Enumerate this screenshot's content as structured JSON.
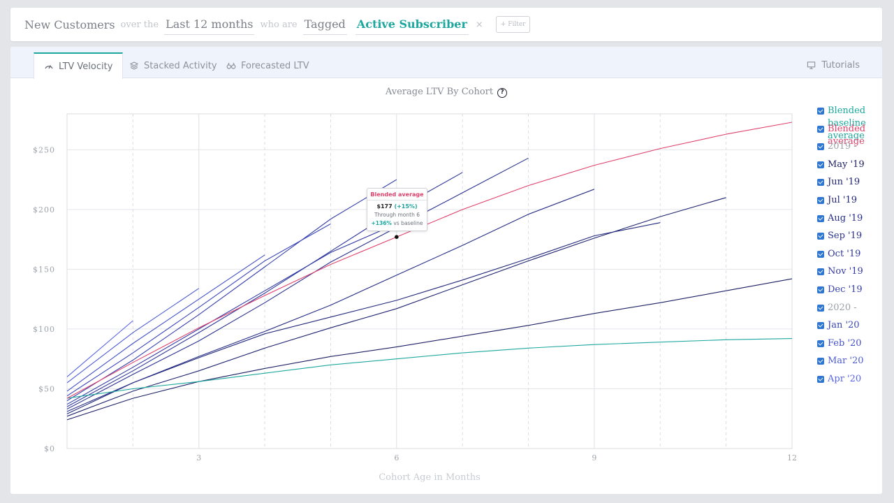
{
  "filter_bar": {
    "subject": "New Customers",
    "over_the": "over the",
    "period": "Last 12 months",
    "who_are": "who are",
    "tagged": "Tagged",
    "tag_value": "Active Subscriber",
    "remove_symbol": "×",
    "filter_button": "+ Filter"
  },
  "tabs": [
    {
      "label": "LTV Velocity",
      "icon": "gauge-icon",
      "active": true
    },
    {
      "label": "Stacked Activity",
      "icon": "layers-icon",
      "active": false
    },
    {
      "label": "Forecasted LTV",
      "icon": "binoculars-icon",
      "active": false
    }
  ],
  "tutorials_label": "Tutorials",
  "tooltip": {
    "title": "Blended average",
    "value": "$177",
    "change": "(+15%)",
    "through": "Through month 6",
    "vs_pct": "+136%",
    "vs_label": "vs baseline"
  },
  "legend": [
    {
      "label": "Blended baseline average",
      "color": "#1ba79e",
      "lines": [
        "Blended",
        "baseline",
        "average"
      ]
    },
    {
      "label": "Blended average",
      "color": "#e0406b",
      "lines": [
        "Blended",
        "average"
      ]
    },
    {
      "label": "2019  -",
      "color": "#9aa0a8"
    },
    {
      "label": "May '19",
      "color": "#1b1f63"
    },
    {
      "label": "Jun '19",
      "color": "#1f2470"
    },
    {
      "label": "Jul '19",
      "color": "#22287a"
    },
    {
      "label": "Aug '19",
      "color": "#262d86"
    },
    {
      "label": "Sep '19",
      "color": "#2a3190"
    },
    {
      "label": "Oct '19",
      "color": "#2e369a"
    },
    {
      "label": "Nov '19",
      "color": "#323aa4"
    },
    {
      "label": "Dec '19",
      "color": "#363fad"
    },
    {
      "label": "2020  -",
      "color": "#9aa0a8"
    },
    {
      "label": "Jan '20",
      "color": "#3a45b8"
    },
    {
      "label": "Feb '20",
      "color": "#4250c6"
    },
    {
      "label": "Mar '20",
      "color": "#4c5bd4"
    },
    {
      "label": "Apr '20",
      "color": "#5865e2"
    }
  ],
  "chart_data": {
    "type": "line",
    "title": "Average LTV By Cohort",
    "xlabel": "Cohort Age in Months",
    "ylabel": "",
    "xlim": [
      1,
      12
    ],
    "ylim": [
      0,
      280
    ],
    "x_ticks": [
      3,
      6,
      9,
      12
    ],
    "y_ticks": [
      0,
      50,
      100,
      150,
      200,
      250
    ],
    "y_tick_labels": [
      "$0",
      "$50",
      "$100",
      "$150",
      "$200",
      "$250"
    ],
    "grid": true,
    "legend_position": "right",
    "series": [
      {
        "name": "Blended baseline average",
        "color": "#1ba79e",
        "x": [
          1,
          2,
          3,
          4,
          5,
          6,
          7,
          8,
          9,
          10,
          11,
          12
        ],
        "y": [
          42,
          50,
          56,
          63,
          70,
          75,
          80,
          84,
          87,
          89,
          91,
          92
        ]
      },
      {
        "name": "Blended average",
        "color": "#e0406b",
        "x": [
          1,
          2,
          3,
          4,
          5,
          6,
          7,
          8,
          9,
          10,
          11,
          12
        ],
        "y": [
          42,
          72,
          101,
          128,
          154,
          177,
          200,
          220,
          237,
          251,
          263,
          273
        ]
      },
      {
        "name": "May '19",
        "color": "#1b1f63",
        "x": [
          1,
          2,
          3,
          4,
          5,
          6,
          7,
          8,
          9,
          10,
          11,
          12
        ],
        "y": [
          24,
          42,
          56,
          67,
          77,
          85,
          94,
          103,
          113,
          122,
          132,
          142
        ]
      },
      {
        "name": "Jun '19",
        "color": "#1f2470",
        "x": [
          1,
          2,
          3,
          4,
          5,
          6,
          7,
          8,
          9,
          10,
          11
        ],
        "y": [
          27,
          48,
          65,
          84,
          101,
          117,
          137,
          157,
          176,
          194,
          210
        ]
      },
      {
        "name": "Jul '19",
        "color": "#22287a",
        "x": [
          1,
          2,
          3,
          4,
          5,
          6,
          7,
          8,
          9,
          10
        ],
        "y": [
          29,
          55,
          76,
          96,
          110,
          124,
          141,
          159,
          178,
          189
        ]
      },
      {
        "name": "Aug '19",
        "color": "#262d86",
        "x": [
          1,
          2,
          3,
          4,
          5,
          6,
          7,
          8,
          9
        ],
        "y": [
          31,
          55,
          77,
          98,
          120,
          145,
          170,
          196,
          217
        ]
      },
      {
        "name": "Sep '19",
        "color": "#2a3190",
        "x": [
          1,
          2,
          3,
          4,
          5,
          6,
          7,
          8
        ],
        "y": [
          33,
          62,
          90,
          122,
          156,
          185,
          214,
          243
        ]
      },
      {
        "name": "Oct '19",
        "color": "#2e369a",
        "x": [
          1,
          2,
          3,
          4,
          5,
          6,
          7
        ],
        "y": [
          35,
          65,
          97,
          130,
          165,
          200,
          231
        ]
      },
      {
        "name": "Nov '19",
        "color": "#323aa4",
        "x": [
          1,
          2,
          3,
          4,
          5,
          6
        ],
        "y": [
          37,
          68,
          100,
          132,
          164,
          188
        ]
      },
      {
        "name": "Dec '19",
        "color": "#363fad",
        "x": [
          1,
          2,
          3,
          4,
          5,
          6
        ],
        "y": [
          40,
          74,
          112,
          152,
          192,
          225
        ]
      },
      {
        "name": "Jan '20",
        "color": "#3a45b8",
        "x": [
          1,
          2,
          3,
          4,
          5
        ],
        "y": [
          44,
          80,
          118,
          157,
          188
        ]
      },
      {
        "name": "Feb '20",
        "color": "#4250c6",
        "x": [
          1,
          2,
          3,
          4
        ],
        "y": [
          48,
          88,
          125,
          162
        ]
      },
      {
        "name": "Mar '20",
        "color": "#4c5bd4",
        "x": [
          1,
          2,
          3
        ],
        "y": [
          55,
          97,
          134
        ]
      },
      {
        "name": "Apr '20",
        "color": "#5865e2",
        "x": [
          1,
          2
        ],
        "y": [
          60,
          107
        ]
      }
    ],
    "highlight_point": {
      "series": "Blended average",
      "x": 6,
      "y": 177
    }
  }
}
